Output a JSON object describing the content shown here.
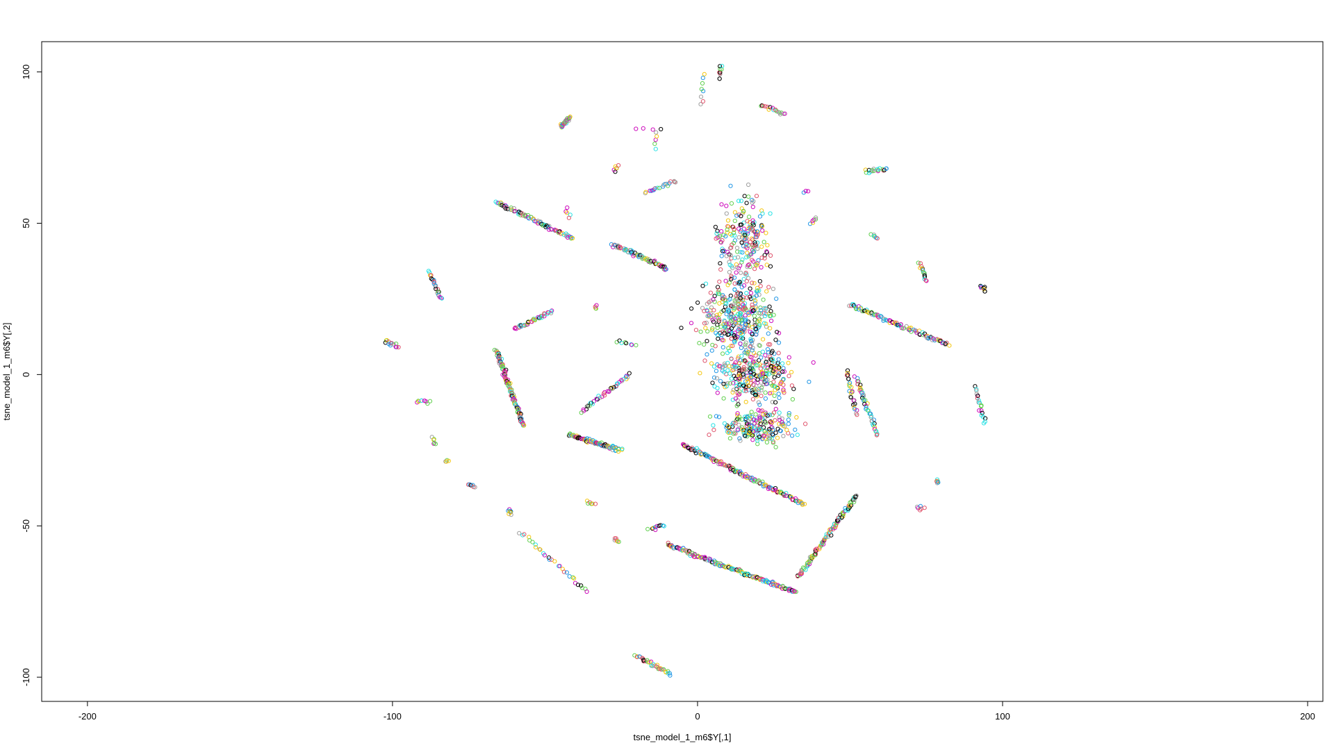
{
  "chart_data": {
    "type": "scatter",
    "title": "",
    "xlabel": "tsne_model_1_m6$Y[,1]",
    "ylabel": "tsne_model_1_m6$Y[,2]",
    "xlim": [
      -215,
      205
    ],
    "ylim": [
      -108,
      110
    ],
    "x_ticks": [
      "-200",
      "-100",
      "0",
      "100",
      "200"
    ],
    "y_ticks": [
      "-100",
      "-50",
      "0",
      "50",
      "100"
    ],
    "x_tick_values": [
      -200,
      -100,
      0,
      100,
      200
    ],
    "y_tick_values": [
      -100,
      -50,
      0,
      50,
      100
    ],
    "grid": false,
    "legend": "none",
    "marker": "open-circle",
    "point_colors": [
      "#000000",
      "#DF536B",
      "#61D04F",
      "#2297E6",
      "#28E2E5",
      "#CD0BBC",
      "#F5C710",
      "#9E9E9E"
    ],
    "clusters": [
      {
        "shape": "line",
        "from": [
          -45,
          82
        ],
        "to": [
          -42,
          85
        ],
        "n": 30
      },
      {
        "shape": "line",
        "from": [
          -66,
          57
        ],
        "to": [
          -41,
          45
        ],
        "n": 80
      },
      {
        "shape": "line",
        "from": [
          -88,
          34
        ],
        "to": [
          -84,
          25
        ],
        "n": 25
      },
      {
        "shape": "line",
        "from": [
          -102,
          11
        ],
        "to": [
          -98,
          9
        ],
        "n": 15
      },
      {
        "shape": "line",
        "from": [
          -92,
          -9
        ],
        "to": [
          -88,
          -9
        ],
        "n": 10
      },
      {
        "shape": "line",
        "from": [
          -87,
          -21
        ],
        "to": [
          -86,
          -23
        ],
        "n": 6
      },
      {
        "shape": "line",
        "from": [
          -82,
          -28
        ],
        "to": [
          -82,
          -29
        ],
        "n": 4
      },
      {
        "shape": "line",
        "from": [
          -75,
          -36
        ],
        "to": [
          -73,
          -37
        ],
        "n": 6
      },
      {
        "shape": "line",
        "from": [
          -62,
          -45
        ],
        "to": [
          -61,
          -46
        ],
        "n": 8
      },
      {
        "shape": "line",
        "from": [
          -58,
          -52
        ],
        "to": [
          -36,
          -72
        ],
        "n": 30
      },
      {
        "shape": "line",
        "from": [
          -20,
          -93
        ],
        "to": [
          -9,
          -99
        ],
        "n": 35
      },
      {
        "shape": "line",
        "from": [
          -28,
          43
        ],
        "to": [
          -10,
          35
        ],
        "n": 70
      },
      {
        "shape": "line",
        "from": [
          -17,
          60
        ],
        "to": [
          -7,
          64
        ],
        "n": 20
      },
      {
        "shape": "line",
        "from": [
          21,
          89
        ],
        "to": [
          29,
          86
        ],
        "n": 18
      },
      {
        "shape": "line",
        "from": [
          55,
          67
        ],
        "to": [
          62,
          68
        ],
        "n": 18
      },
      {
        "shape": "line",
        "from": [
          50,
          23
        ],
        "to": [
          82,
          10
        ],
        "n": 100
      },
      {
        "shape": "line",
        "from": [
          73,
          37
        ],
        "to": [
          75,
          31
        ],
        "n": 15
      },
      {
        "shape": "line",
        "from": [
          91,
          -4
        ],
        "to": [
          94,
          -16
        ],
        "n": 20
      },
      {
        "shape": "line",
        "from": [
          52,
          -1
        ],
        "to": [
          59,
          -20
        ],
        "n": 45
      },
      {
        "shape": "line",
        "from": [
          49,
          1
        ],
        "to": [
          52,
          -13
        ],
        "n": 25
      },
      {
        "shape": "line",
        "from": [
          33,
          -67
        ],
        "to": [
          52,
          -40
        ],
        "n": 110
      },
      {
        "shape": "line",
        "from": [
          -10,
          -56
        ],
        "to": [
          32,
          -72
        ],
        "n": 170
      },
      {
        "shape": "line",
        "from": [
          -5,
          -23
        ],
        "to": [
          35,
          -43
        ],
        "n": 150
      },
      {
        "shape": "line",
        "from": [
          -22,
          0
        ],
        "to": [
          -38,
          -12
        ],
        "n": 40
      },
      {
        "shape": "line",
        "from": [
          -42,
          -20
        ],
        "to": [
          -25,
          -25
        ],
        "n": 90
      },
      {
        "shape": "line",
        "from": [
          -66,
          8
        ],
        "to": [
          -57,
          -17
        ],
        "n": 110
      },
      {
        "shape": "line",
        "from": [
          -60,
          15
        ],
        "to": [
          -48,
          21
        ],
        "n": 40
      },
      {
        "shape": "line",
        "from": [
          -12,
          81
        ],
        "to": [
          -20,
          81
        ],
        "n": 4
      },
      {
        "shape": "line",
        "from": [
          -14,
          75
        ],
        "to": [
          -13,
          80
        ],
        "n": 5
      },
      {
        "shape": "line",
        "from": [
          -27,
          67
        ],
        "to": [
          -26,
          69
        ],
        "n": 6
      },
      {
        "shape": "line",
        "from": [
          1,
          89
        ],
        "to": [
          2,
          99
        ],
        "n": 8
      },
      {
        "shape": "line",
        "from": [
          7,
          98
        ],
        "to": [
          8,
          102
        ],
        "n": 10
      },
      {
        "shape": "line",
        "from": [
          37,
          50
        ],
        "to": [
          39,
          52
        ],
        "n": 6
      },
      {
        "shape": "line",
        "from": [
          35,
          60
        ],
        "to": [
          36,
          61
        ],
        "n": 3
      },
      {
        "shape": "line",
        "from": [
          57,
          46
        ],
        "to": [
          59,
          45
        ],
        "n": 6
      },
      {
        "shape": "line",
        "from": [
          -27,
          11
        ],
        "to": [
          -20,
          10
        ],
        "n": 8
      },
      {
        "shape": "line",
        "from": [
          -34,
          22
        ],
        "to": [
          -33,
          23
        ],
        "n": 4
      },
      {
        "shape": "line",
        "from": [
          -43,
          55
        ],
        "to": [
          -42,
          52
        ],
        "n": 5
      },
      {
        "shape": "line",
        "from": [
          93,
          29
        ],
        "to": [
          94,
          28
        ],
        "n": 8
      },
      {
        "shape": "line",
        "from": [
          72,
          -44
        ],
        "to": [
          74,
          -44
        ],
        "n": 6
      },
      {
        "shape": "line",
        "from": [
          78,
          -35
        ],
        "to": [
          79,
          -36
        ],
        "n": 6
      },
      {
        "shape": "line",
        "from": [
          -36,
          -42
        ],
        "to": [
          -34,
          -43
        ],
        "n": 6
      },
      {
        "shape": "line",
        "from": [
          -27,
          -54
        ],
        "to": [
          -26,
          -55
        ],
        "n": 6
      },
      {
        "shape": "line",
        "from": [
          -16,
          -51
        ],
        "to": [
          -11,
          -50
        ],
        "n": 10
      },
      {
        "shape": "blob",
        "center": [
          15,
          45
        ],
        "spread": [
          8,
          13
        ],
        "n": 200
      },
      {
        "shape": "blob",
        "center": [
          13,
          20
        ],
        "spread": [
          12,
          12
        ],
        "n": 350
      },
      {
        "shape": "blob",
        "center": [
          18,
          0
        ],
        "spread": [
          13,
          9
        ],
        "n": 300
      },
      {
        "shape": "blob",
        "center": [
          20,
          -17
        ],
        "spread": [
          12,
          6
        ],
        "n": 200
      }
    ]
  }
}
